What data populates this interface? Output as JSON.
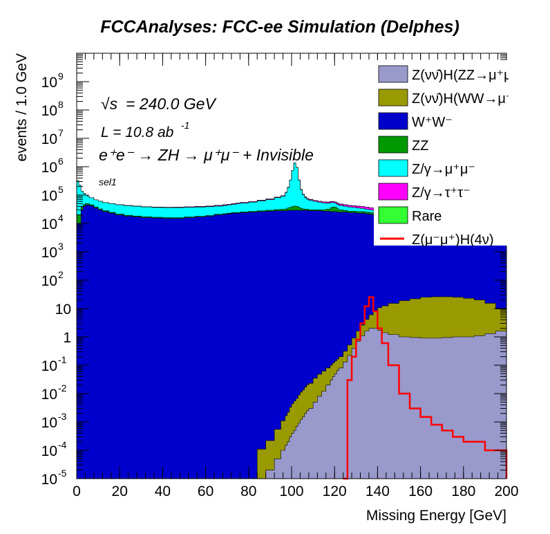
{
  "chart_data": {
    "type": "area",
    "title": "FCCAnalyses: FCC-ee Simulation (Delphes)",
    "xlabel": "Missing Energy [GeV]",
    "ylabel": "events / 1.0 GeV",
    "xlim": [
      0,
      200
    ],
    "ylim": [
      1e-05,
      10000000000.0
    ],
    "yscale": "log",
    "stacked": true,
    "grid": false,
    "legend_position": "top-right",
    "x_ticks": [
      "0",
      "20",
      "40",
      "60",
      "80",
      "100",
      "120",
      "140",
      "160",
      "180",
      "200"
    ],
    "y_ticks": [
      {
        "base": "10",
        "exp": "-5"
      },
      {
        "base": "10",
        "exp": "-4"
      },
      {
        "base": "10",
        "exp": "-3"
      },
      {
        "base": "10",
        "exp": "-2"
      },
      {
        "base": "10",
        "exp": "-1"
      },
      {
        "base": "1",
        "exp": ""
      },
      {
        "base": "10",
        "exp": ""
      },
      {
        "base": "10",
        "exp": "2"
      },
      {
        "base": "10",
        "exp": "3"
      },
      {
        "base": "10",
        "exp": "4"
      },
      {
        "base": "10",
        "exp": "5"
      },
      {
        "base": "10",
        "exp": "6"
      },
      {
        "base": "10",
        "exp": "7"
      },
      {
        "base": "10",
        "exp": "8"
      },
      {
        "base": "10",
        "exp": "9"
      }
    ],
    "annotations": {
      "sqrt_s": "= 240.0 GeV",
      "sqrt_s_symbol": "√s",
      "lumi": "L = 10.8 ab",
      "lumi_exp": "-1",
      "process": "e⁺e⁻ → ZH → μ⁺μ⁻ + Invisible",
      "selection": "sel1"
    },
    "x": [
      0,
      1,
      2,
      3,
      4,
      5,
      6,
      8,
      10,
      12,
      15,
      18,
      22,
      26,
      30,
      35,
      40,
      45,
      50,
      55,
      60,
      64,
      68,
      70,
      72,
      74,
      76,
      80,
      84,
      88,
      92,
      95,
      97,
      98,
      99,
      100,
      101,
      102,
      103,
      104,
      105,
      106,
      107,
      108,
      110,
      112,
      114,
      116,
      118,
      119,
      120,
      121,
      122,
      124,
      126,
      128,
      130,
      132,
      134,
      136,
      138,
      140,
      142,
      145,
      150,
      155,
      160,
      165,
      170,
      175,
      180,
      185,
      190,
      195,
      200
    ],
    "series": [
      {
        "name": "Z(νν̄)H(ZZ→μ⁺μ⁻ν⁺ν⁻)",
        "color": "#9999cc",
        "values": [
          1e-05,
          1e-05,
          1e-05,
          1e-05,
          1e-05,
          1e-05,
          1e-05,
          1e-05,
          1e-05,
          1e-05,
          1e-05,
          1e-05,
          1e-05,
          1e-05,
          1e-05,
          1e-05,
          1e-05,
          1e-05,
          1e-05,
          1e-05,
          1e-05,
          1e-05,
          1e-05,
          1e-05,
          1e-05,
          1e-05,
          1e-05,
          1e-05,
          1e-05,
          2e-05,
          5e-05,
          0.0001,
          0.00015,
          0.0002,
          0.0003,
          0.0004,
          0.0005,
          0.0007,
          0.0009,
          0.0012,
          0.0015,
          0.002,
          0.0025,
          0.003,
          0.005,
          0.008,
          0.012,
          0.02,
          0.03,
          0.04,
          0.05,
          0.065,
          0.08,
          0.13,
          0.22,
          0.4,
          0.7,
          1.1,
          1.6,
          2.0,
          2.0,
          1.7,
          1.4,
          1.2,
          1.0,
          0.95,
          0.9,
          0.9,
          0.95,
          1.0,
          1.0,
          1.1,
          1.3,
          1.6,
          2.0
        ]
      },
      {
        "name": "Z(νν̄)H(WW→μ⁺νμ⁻ν)",
        "color": "#999900",
        "values": [
          0,
          0,
          0,
          0,
          0,
          0,
          0,
          0,
          0,
          0,
          0,
          0,
          0,
          0,
          0,
          0,
          0,
          0,
          0,
          0,
          0,
          0,
          0,
          0,
          0,
          0,
          0,
          0,
          0.0001,
          0.0002,
          0.0005,
          0.001,
          0.0015,
          0.002,
          0.003,
          0.004,
          0.005,
          0.006,
          0.008,
          0.01,
          0.012,
          0.015,
          0.018,
          0.02,
          0.03,
          0.04,
          0.05,
          0.06,
          0.07,
          0.08,
          0.09,
          0.1,
          0.12,
          0.18,
          0.3,
          0.5,
          0.9,
          1.5,
          2.5,
          4,
          6,
          9,
          11,
          14,
          18,
          21,
          24,
          25,
          25,
          24,
          22,
          19,
          14,
          8,
          4
        ]
      },
      {
        "name": "W⁺W⁻",
        "color": "#0000cc",
        "values": [
          10000.0,
          10000.0,
          30000.0,
          40000.0,
          45000.0,
          45000.0,
          42000.0,
          35000.0,
          30000.0,
          26000.0,
          23000.0,
          20000.0,
          18000.0,
          17000.0,
          16000.0,
          15500.0,
          15000.0,
          15000.0,
          16000.0,
          17000.0,
          18000.0,
          20000.0,
          21000.0,
          22000.0,
          23000.0,
          23000.0,
          24000.0,
          25000.0,
          26000.0,
          27000.0,
          28000.0,
          28000.0,
          28000.0,
          29000.0,
          29000.0,
          29000.0,
          29000.0,
          29000.0,
          29000.0,
          29000.0,
          29000.0,
          29000.0,
          29000.0,
          28000.0,
          28000.0,
          28000.0,
          27000.0,
          27000.0,
          26000.0,
          26000.0,
          26000.0,
          25000.0,
          25000.0,
          25000.0,
          24000.0,
          24000.0,
          23000.0,
          23000.0,
          22000.0,
          21000.0,
          20000.0,
          19000.0,
          18000.0,
          17000.0,
          16000.0,
          15000.0,
          14000.0,
          13000.0,
          12000.0,
          11000.0,
          10000.0,
          9000.0,
          8000.0,
          7000.0,
          6000.0
        ]
      },
      {
        "name": "ZZ",
        "color": "#009900",
        "values": [
          10000.0,
          10000.0,
          8000.0,
          6000.0,
          5000.0,
          4000.0,
          3500.0,
          3000.0,
          2500.0,
          2000.0,
          1700.0,
          1500.0,
          1300.0,
          1200.0,
          1100.0,
          1000.0,
          950,
          900,
          900,
          900,
          900,
          950,
          1000.0,
          1000.0,
          1100.0,
          1200.0,
          1300.0,
          1500.0,
          1800.0,
          2200.0,
          2800.0,
          3500.0,
          4500.0,
          6000.0,
          8000.0,
          10000.0,
          12000.0,
          11000.0,
          8000.0,
          5000.0,
          3500.0,
          2800.0,
          2500.0,
          2300.0,
          2200.0,
          2200.0,
          3000.0,
          5000.0,
          10000.0,
          12000.0,
          11000.0,
          8000.0,
          5000.0,
          3500.0,
          3000.0,
          3000.0,
          3000.0,
          3000.0,
          3000.0,
          3000.0,
          3000.0,
          3000.0,
          3000.0,
          3000.0,
          3000.0,
          3000.0,
          3000.0,
          3000.0,
          3000.0,
          3000.0,
          3000.0,
          3000.0,
          3000.0,
          3000.0,
          3000.0
        ]
      },
      {
        "name": "Z/γ→μ⁺μ⁻",
        "color": "#00ffff",
        "values": [
          300000.0,
          200000.0,
          100000.0,
          70000.0,
          50000.0,
          40000.0,
          35000.0,
          30000.0,
          28000.0,
          26000.0,
          25000.0,
          24000.0,
          23000.0,
          22000.0,
          21000.0,
          20000.0,
          20000.0,
          20000.0,
          20000.0,
          20000.0,
          20000.0,
          20000.0,
          21000.0,
          22000.0,
          23000.0,
          25000.0,
          27000.0,
          30000.0,
          35000.0,
          40000.0,
          50000.0,
          60000.0,
          90000.0,
          150000.0,
          300000.0,
          700000.0,
          1300000.0,
          900000.0,
          300000.0,
          120000.0,
          70000.0,
          50000.0,
          40000.0,
          35000.0,
          30000.0,
          26000.0,
          23000.0,
          20000.0,
          18000.0,
          16000.0,
          15000.0,
          14000.0,
          13000.0,
          12000.0,
          11000.0,
          10000.0,
          9000.0,
          8000.0,
          7000.0,
          6000.0,
          5000.0,
          4000.0,
          3000.0,
          2000.0,
          1500.0,
          1000.0,
          800,
          600,
          500,
          400,
          300,
          200,
          100,
          50,
          20
        ]
      },
      {
        "name": "Z/γ→τ⁺τ⁻",
        "color": "#ff00ff",
        "values": [
          2e-05,
          0.3,
          1.5,
          5,
          10,
          20,
          40,
          60,
          100,
          150,
          250,
          350,
          500,
          650,
          800,
          1000.0,
          1200.0,
          1400.0,
          1600.0,
          1800.0,
          2000.0,
          2200.0,
          2400.0,
          2500.0,
          2600.0,
          2700.0,
          2800.0,
          3000.0,
          3200.0,
          3400.0,
          3600.0,
          3700.0,
          3800.0,
          3800.0,
          3900.0,
          3900.0,
          4000.0,
          4000.0,
          4000.0,
          4100.0,
          4100.0,
          4200.0,
          4200.0,
          4300.0,
          4400.0,
          4500.0,
          4600.0,
          4700.0,
          4800.0,
          4900.0,
          5000.0,
          5000.0,
          5100.0,
          5200.0,
          5300.0,
          5400.0,
          5500.0,
          5600.0,
          5700.0,
          5800.0,
          5900.0,
          6000.0,
          6100.0,
          6200.0,
          6300.0,
          6400.0,
          6500.0,
          6600.0,
          6700.0,
          6800.0,
          6900.0,
          7000.0,
          7100.0,
          7200.0,
          7200.0
        ]
      },
      {
        "name": "Rare",
        "color": "#33ff33",
        "values": [
          0,
          0,
          0,
          0,
          0,
          0,
          0,
          0,
          0,
          0,
          0,
          0,
          0,
          0,
          0,
          0,
          0,
          0,
          0,
          0,
          0,
          0,
          0,
          0,
          0,
          0,
          0,
          0,
          0,
          0,
          0,
          0,
          0,
          0,
          0,
          0,
          0,
          0,
          0,
          0,
          0,
          0,
          0,
          0,
          0,
          0,
          0,
          0,
          0,
          0,
          0,
          0,
          0,
          0,
          0,
          0,
          0,
          0,
          0,
          0,
          0,
          0,
          0,
          0,
          0,
          0,
          0,
          0,
          0,
          0,
          0,
          0,
          0,
          0,
          0
        ]
      },
      {
        "name": "Z(μ⁻μ⁺)H(4ν)",
        "color": "#ff0000",
        "style": "line",
        "values": [
          null,
          null,
          null,
          null,
          null,
          null,
          null,
          null,
          null,
          null,
          null,
          null,
          null,
          null,
          null,
          null,
          null,
          null,
          null,
          null,
          null,
          null,
          null,
          null,
          null,
          null,
          null,
          null,
          null,
          null,
          null,
          null,
          null,
          null,
          null,
          null,
          null,
          null,
          null,
          null,
          null,
          null,
          null,
          null,
          null,
          null,
          null,
          null,
          null,
          null,
          null,
          null,
          null,
          1e-05,
          0.03,
          0.2,
          0.8,
          3,
          12,
          25,
          8,
          2,
          0.6,
          0.1,
          0.01,
          0.003,
          0.0015,
          0.0008,
          0.0005,
          0.0003,
          0.0002,
          0.0002,
          0.0001,
          0.0001,
          1e-05
        ]
      }
    ]
  }
}
